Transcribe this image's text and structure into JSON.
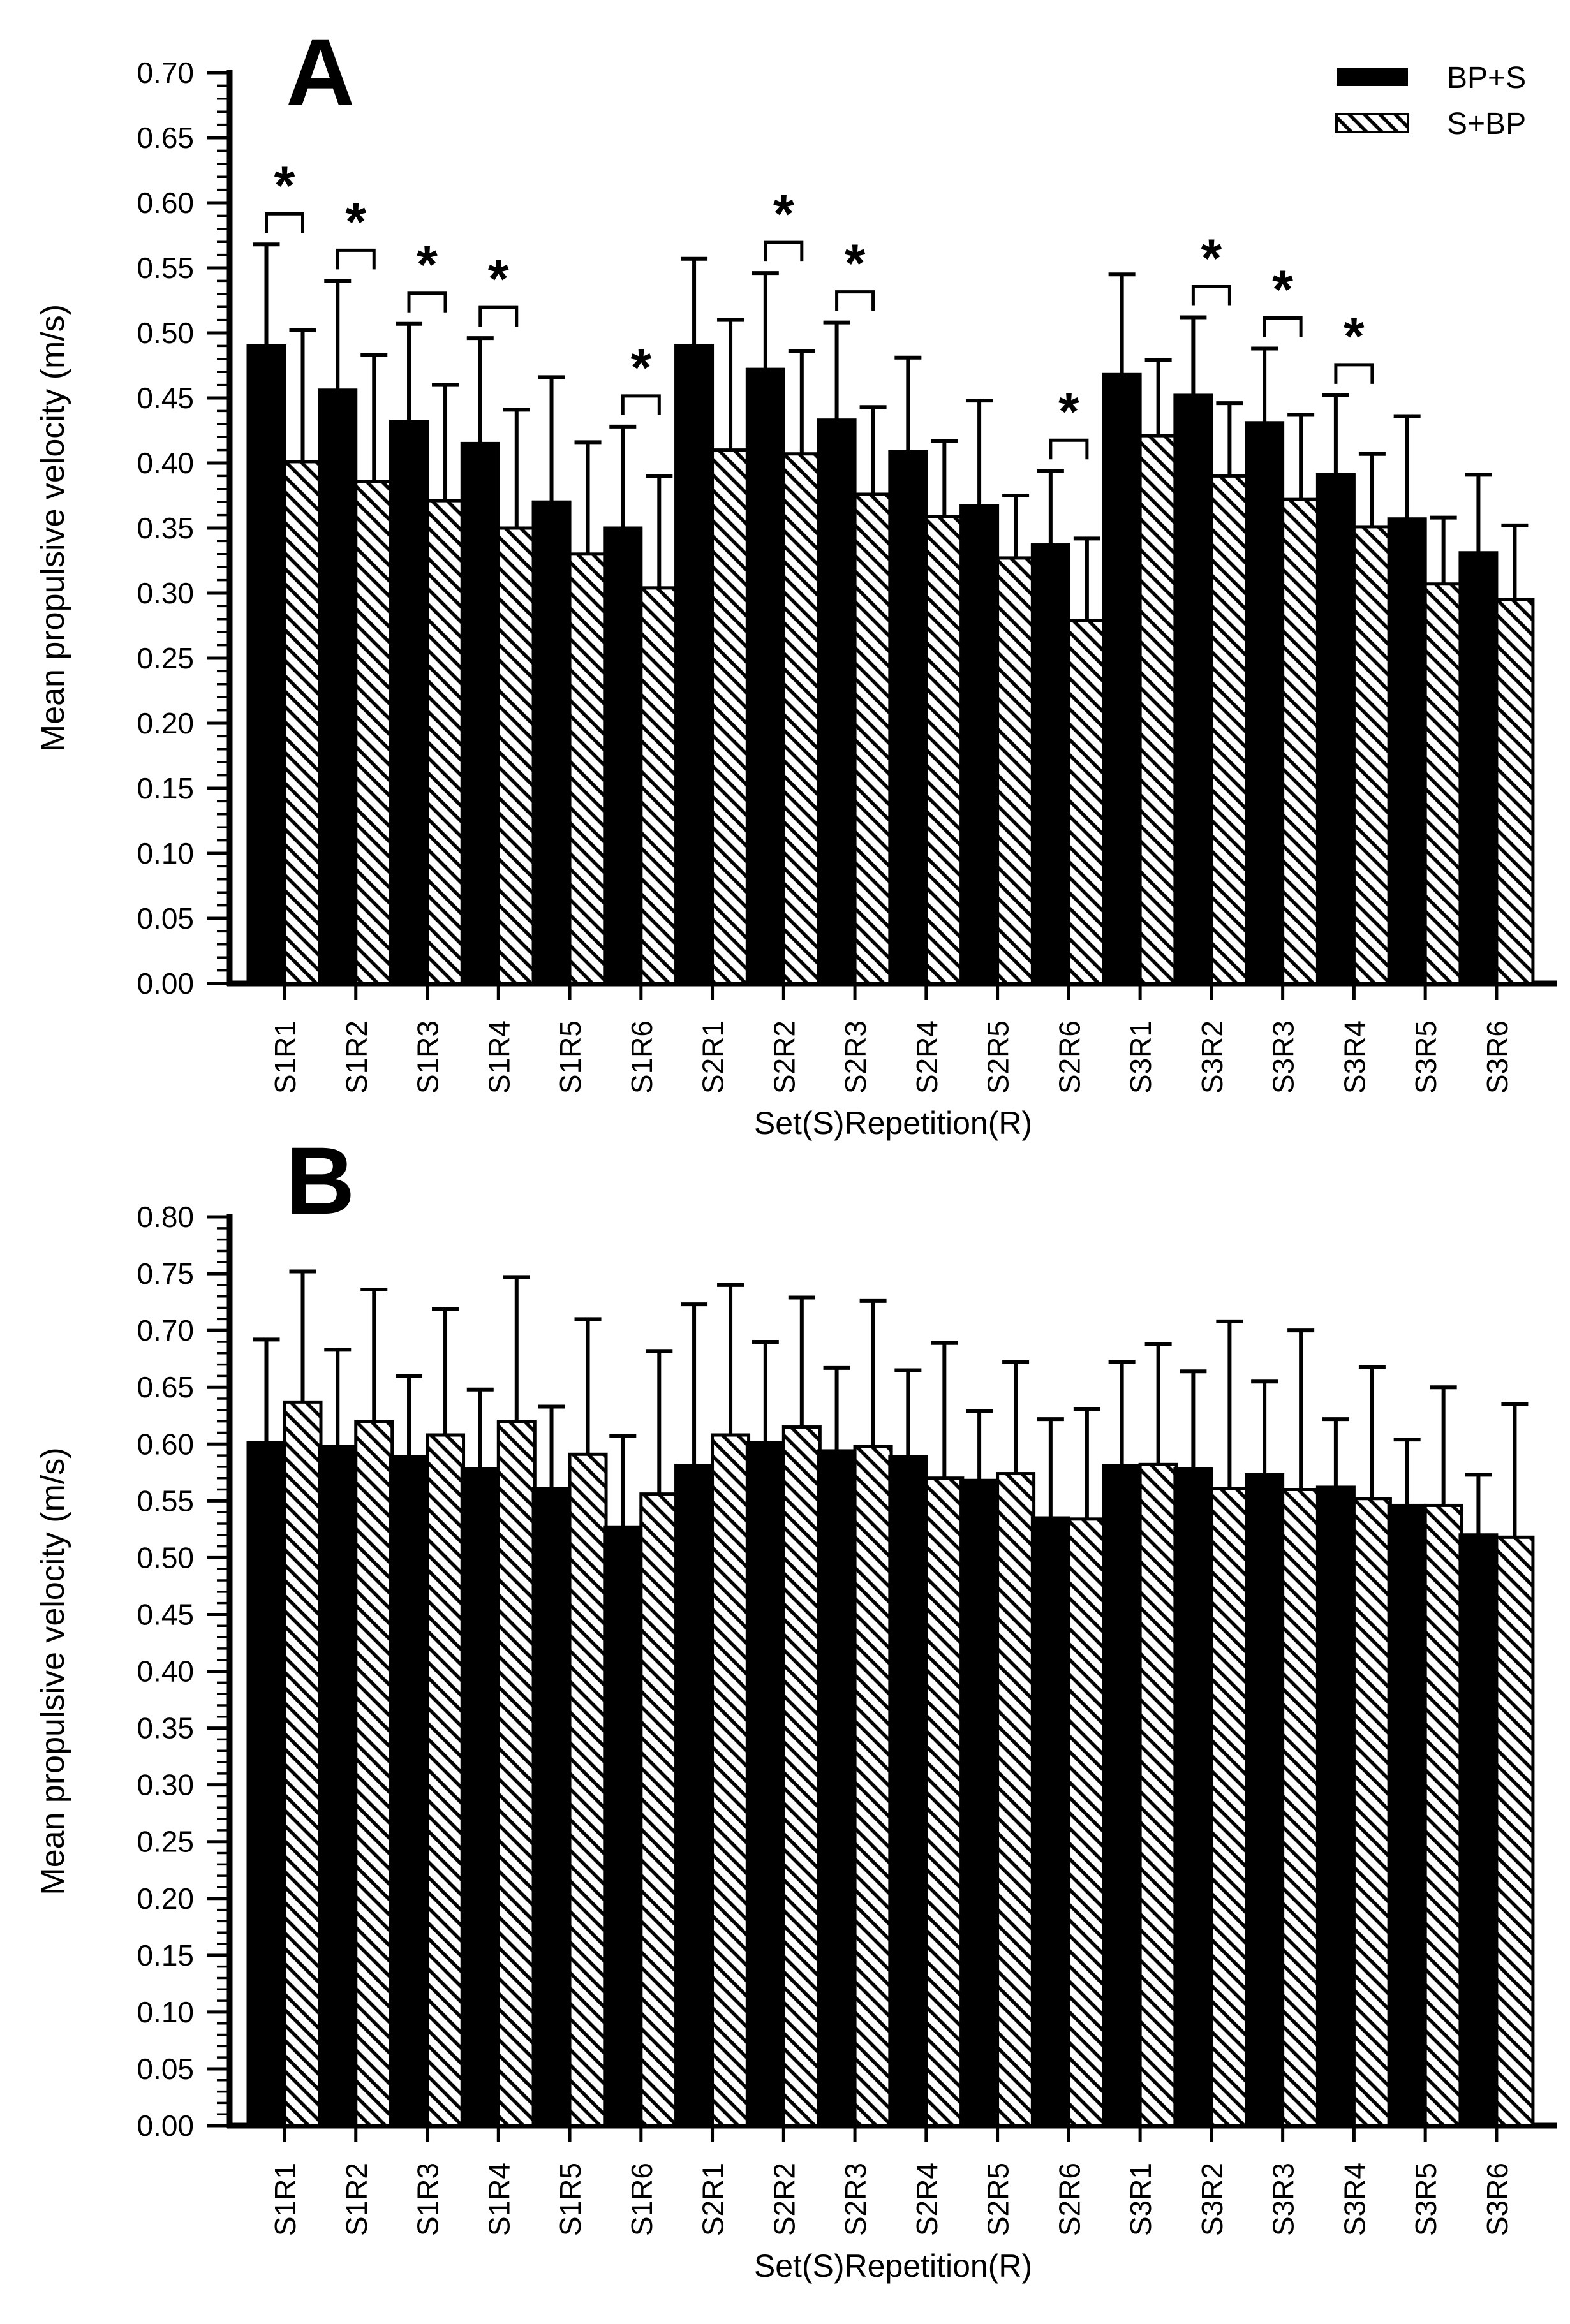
{
  "figure": {
    "background": "#ffffff",
    "ink_color": "#000000",
    "significance_marker": "*"
  },
  "chart_data": [
    {
      "type": "bar",
      "panel_label": "A",
      "ylabel": "Mean propulsive velocity (m/s)",
      "xlabel": "Set(S)Repetition(R)",
      "ylim": [
        0.0,
        0.7
      ],
      "ytick_step": 0.05,
      "ytick_minor_step": 0.01,
      "ytick_labels": [
        "0.00",
        "0.05",
        "0.10",
        "0.15",
        "0.20",
        "0.25",
        "0.30",
        "0.35",
        "0.40",
        "0.45",
        "0.50",
        "0.55",
        "0.60",
        "0.65",
        "0.70"
      ],
      "grid": false,
      "categories": [
        "S1R1",
        "S1R2",
        "S1R3",
        "S1R4",
        "S1R5",
        "S1R6",
        "S2R1",
        "S2R2",
        "S2R3",
        "S2R4",
        "S2R5",
        "S2R6",
        "S3R1",
        "S3R2",
        "S3R3",
        "S3R4",
        "S3R5",
        "S3R6"
      ],
      "series": [
        {
          "name": "BP+S",
          "style": "solid-black",
          "values": [
            0.49,
            0.456,
            0.432,
            0.415,
            0.37,
            0.35,
            0.49,
            0.472,
            0.433,
            0.409,
            0.367,
            0.337,
            0.468,
            0.452,
            0.431,
            0.391,
            0.357,
            0.331
          ],
          "err_top": [
            0.568,
            0.54,
            0.507,
            0.496,
            0.466,
            0.428,
            0.557,
            0.546,
            0.508,
            0.481,
            0.448,
            0.394,
            0.545,
            0.512,
            0.488,
            0.452,
            0.436,
            0.391
          ]
        },
        {
          "name": "S+BP",
          "style": "hatched",
          "values": [
            0.401,
            0.386,
            0.371,
            0.35,
            0.33,
            0.304,
            0.41,
            0.407,
            0.376,
            0.359,
            0.327,
            0.279,
            0.421,
            0.39,
            0.372,
            0.351,
            0.307,
            0.295
          ],
          "err_top": [
            0.502,
            0.483,
            0.46,
            0.441,
            0.416,
            0.39,
            0.51,
            0.486,
            0.443,
            0.417,
            0.375,
            0.342,
            0.479,
            0.446,
            0.437,
            0.407,
            0.358,
            0.352
          ]
        }
      ],
      "significance_marker": "*",
      "significant_categories": [
        "S1R1",
        "S1R2",
        "S1R3",
        "S1R4",
        "S1R6",
        "S2R2",
        "S2R3",
        "S2R6",
        "S3R2",
        "S3R3",
        "S3R4"
      ],
      "legend": {
        "position": "top-right",
        "entries": [
          "BP+S",
          "S+BP"
        ]
      }
    },
    {
      "type": "bar",
      "panel_label": "B",
      "ylabel": "Mean propulsive velocity (m/s)",
      "xlabel": "Set(S)Repetition(R)",
      "ylim": [
        0.0,
        0.8
      ],
      "ytick_step": 0.05,
      "ytick_minor_step": 0.01,
      "ytick_labels": [
        "0.00",
        "0.05",
        "0.10",
        "0.15",
        "0.20",
        "0.25",
        "0.30",
        "0.35",
        "0.40",
        "0.45",
        "0.50",
        "0.55",
        "0.60",
        "0.65",
        "0.70",
        "0.75",
        "0.80"
      ],
      "grid": false,
      "categories": [
        "S1R1",
        "S1R2",
        "S1R3",
        "S1R4",
        "S1R5",
        "S1R6",
        "S2R1",
        "S2R2",
        "S2R3",
        "S2R4",
        "S2R5",
        "S2R6",
        "S3R1",
        "S3R2",
        "S3R3",
        "S3R4",
        "S3R5",
        "S3R6"
      ],
      "series": [
        {
          "name": "BP+S",
          "style": "solid-black",
          "values": [
            0.601,
            0.598,
            0.589,
            0.578,
            0.561,
            0.527,
            0.581,
            0.601,
            0.594,
            0.589,
            0.568,
            0.535,
            0.581,
            0.578,
            0.573,
            0.562,
            0.546,
            0.52
          ],
          "err_top": [
            0.692,
            0.683,
            0.66,
            0.648,
            0.633,
            0.607,
            0.723,
            0.69,
            0.667,
            0.665,
            0.629,
            0.622,
            0.672,
            0.664,
            0.655,
            0.622,
            0.604,
            0.573
          ]
        },
        {
          "name": "S+BP",
          "style": "hatched",
          "values": [
            0.637,
            0.62,
            0.608,
            0.62,
            0.591,
            0.556,
            0.608,
            0.615,
            0.598,
            0.57,
            0.574,
            0.534,
            0.582,
            0.561,
            0.56,
            0.552,
            0.546,
            0.518
          ],
          "err_top": [
            0.752,
            0.736,
            0.719,
            0.747,
            0.71,
            0.682,
            0.74,
            0.729,
            0.726,
            0.689,
            0.672,
            0.631,
            0.688,
            0.708,
            0.7,
            0.668,
            0.65,
            0.635
          ]
        }
      ],
      "significance_marker": "*",
      "significant_categories": [],
      "legend": null
    }
  ]
}
